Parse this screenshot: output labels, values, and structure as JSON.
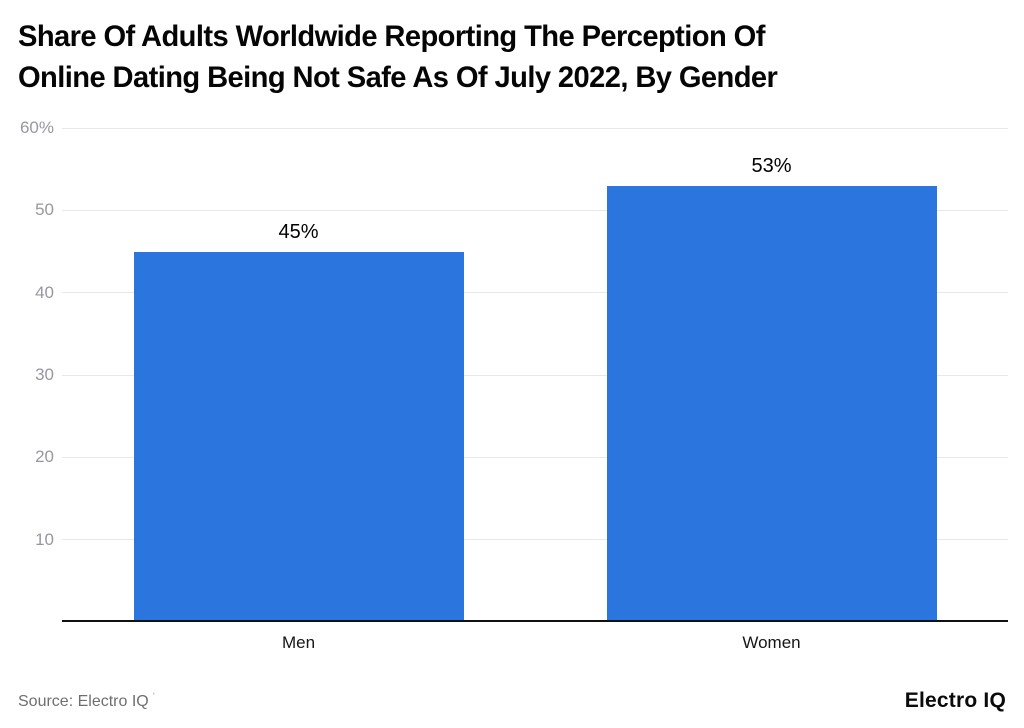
{
  "header": {
    "title_lines": [
      "Share Of Adults Worldwide Reporting The Perception Of",
      "Online Dating Being Not Safe As Of July 2022, By Gender"
    ]
  },
  "chart_data": {
    "type": "bar",
    "title": "Share Of Adults Worldwide Reporting The Perception Of Online Dating Being Not Safe As Of July 2022, By Gender",
    "categories": [
      "Men",
      "Women"
    ],
    "values": [
      45,
      53
    ],
    "value_labels": [
      "45%",
      "53%"
    ],
    "xlabel": "",
    "ylabel": "",
    "ylim": [
      0,
      60
    ],
    "y_ticks": [
      {
        "value": 60,
        "label": "60%"
      },
      {
        "value": 50,
        "label": "50"
      },
      {
        "value": 40,
        "label": "40"
      },
      {
        "value": 30,
        "label": "30"
      },
      {
        "value": 20,
        "label": "20"
      },
      {
        "value": 10,
        "label": "10"
      }
    ],
    "grid": true,
    "legend": false,
    "bar_color": "#2b76de"
  },
  "footer": {
    "source": "Source: Electro IQ",
    "source_mark": "'",
    "brand": "Electro IQ"
  }
}
